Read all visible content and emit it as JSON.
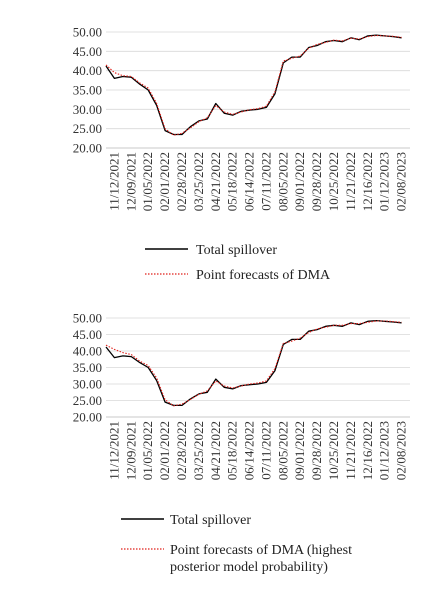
{
  "chart_data": [
    {
      "type": "line",
      "title": "",
      "xlabel": "",
      "ylabel": "",
      "ylim": [
        20,
        50
      ],
      "yticks": [
        "50.00",
        "45.00",
        "40.00",
        "35.00",
        "30.00",
        "25.00",
        "20.00"
      ],
      "ytick_values": [
        50,
        45,
        40,
        35,
        30,
        25,
        20
      ],
      "xticks": [
        "11/12/2021",
        "12/09/2021",
        "01/05/2022",
        "02/01/2022",
        "02/28/2022",
        "03/25/2022",
        "04/21/2022",
        "05/18/2022",
        "06/14/2022",
        "07/11/2022",
        "08/05/2022",
        "09/01/2022",
        "09/28/2022",
        "10/25/2022",
        "11/21/2022",
        "12/16/2022",
        "01/12/2023",
        "02/08/2023"
      ],
      "grid": true,
      "legend_position": "bottom",
      "series": [
        {
          "name": "Total  spillover",
          "color": "#000000",
          "style": "solid",
          "x": [
            0,
            0.5,
            1,
            1.5,
            2,
            2.5,
            3,
            3.5,
            4,
            4.5,
            5,
            5.5,
            6,
            6.5,
            7,
            7.5,
            8,
            8.5,
            9,
            9.5,
            10,
            10.5,
            11,
            11.5,
            12,
            12.5,
            13,
            13.5,
            14,
            14.5,
            15,
            15.5,
            16,
            16.5,
            17,
            17.5
          ],
          "values": [
            41.2,
            38,
            38.5,
            38.3,
            36.5,
            35,
            31,
            24.5,
            23.5,
            23.5,
            25.5,
            27,
            27.5,
            31.5,
            29,
            28.5,
            29.5,
            29.8,
            30,
            30.5,
            34,
            42,
            43.5,
            43.5,
            46,
            46.5,
            47.5,
            47.8,
            47.5,
            48.5,
            48,
            49,
            49.2,
            49,
            48.8,
            48.5
          ]
        },
        {
          "name": "Point forecasts of DMA",
          "color": "#e0201b",
          "style": "dotted",
          "x": [
            0,
            0.5,
            1,
            1.5,
            2,
            2.5,
            3,
            3.5,
            4,
            4.5,
            5,
            5.5,
            6,
            6.5,
            7,
            7.5,
            8,
            8.5,
            9,
            9.5,
            10,
            10.5,
            11,
            11.5,
            12,
            12.5,
            13,
            13.5,
            14,
            14.5,
            15,
            15.5,
            16,
            16.5,
            17,
            17.5
          ],
          "values": [
            41.5,
            39.5,
            38.7,
            38.5,
            36.8,
            35.5,
            31.5,
            25,
            23.3,
            23.8,
            25.2,
            26.8,
            27.8,
            31,
            29.3,
            28.7,
            29.3,
            29.9,
            30.2,
            30.8,
            34.5,
            42.5,
            43.2,
            43.8,
            45.8,
            46.8,
            47.3,
            47.9,
            47.7,
            48.4,
            48.2,
            48.8,
            49.1,
            49,
            48.9,
            48.6
          ]
        }
      ]
    },
    {
      "type": "line",
      "title": "",
      "xlabel": "",
      "ylabel": "",
      "ylim": [
        20,
        50
      ],
      "yticks": [
        "50.00",
        "45.00",
        "40.00",
        "35.00",
        "30.00",
        "25.00",
        "20.00"
      ],
      "ytick_values": [
        50,
        45,
        40,
        35,
        30,
        25,
        20
      ],
      "xticks": [
        "11/12/2021",
        "12/09/2021",
        "01/05/2022",
        "02/01/2022",
        "02/28/2022",
        "03/25/2022",
        "04/21/2022",
        "05/18/2022",
        "06/14/2022",
        "07/11/2022",
        "08/05/2022",
        "09/01/2022",
        "09/28/2022",
        "10/25/2022",
        "11/21/2022",
        "12/16/2022",
        "01/12/2023",
        "02/08/2023"
      ],
      "grid": true,
      "legend_position": "bottom",
      "series": [
        {
          "name": "Total  spillover",
          "color": "#000000",
          "style": "solid",
          "x": [
            0,
            0.5,
            1,
            1.5,
            2,
            2.5,
            3,
            3.5,
            4,
            4.5,
            5,
            5.5,
            6,
            6.5,
            7,
            7.5,
            8,
            8.5,
            9,
            9.5,
            10,
            10.5,
            11,
            11.5,
            12,
            12.5,
            13,
            13.5,
            14,
            14.5,
            15,
            15.5,
            16,
            16.5,
            17,
            17.5
          ],
          "values": [
            41.2,
            38,
            38.5,
            38.3,
            36.5,
            35,
            31,
            24.5,
            23.5,
            23.5,
            25.5,
            27,
            27.5,
            31.5,
            29,
            28.5,
            29.5,
            29.8,
            30,
            30.5,
            34,
            42,
            43.5,
            43.5,
            46,
            46.5,
            47.5,
            47.8,
            47.5,
            48.5,
            48,
            49,
            49.2,
            49,
            48.8,
            48.5
          ]
        },
        {
          "name": "Point forecasts of DMA (highest posterior model probability)",
          "color": "#e0201b",
          "style": "dotted",
          "x": [
            0,
            0.5,
            1,
            1.5,
            2,
            2.5,
            3,
            3.5,
            4,
            4.5,
            5,
            5.5,
            6,
            6.5,
            7,
            7.5,
            8,
            8.5,
            9,
            9.5,
            10,
            10.5,
            11,
            11.5,
            12,
            12.5,
            13,
            13.5,
            14,
            14.5,
            15,
            15.5,
            16,
            16.5,
            17,
            17.5
          ],
          "values": [
            41.8,
            40.5,
            39.5,
            38.9,
            36.9,
            35.6,
            31.8,
            25.2,
            23.4,
            23.9,
            25.3,
            26.9,
            27.9,
            30.9,
            29.4,
            28.8,
            29.4,
            30,
            30.3,
            30.9,
            34.7,
            42.3,
            43,
            43.9,
            45.6,
            46.7,
            47.2,
            47.8,
            47.8,
            48.3,
            48.3,
            48.7,
            49.1,
            49.1,
            48.9,
            48.7
          ]
        }
      ],
      "legend_lines": [
        "Point forecasts of DMA (highest",
        "posterior model probability)"
      ]
    }
  ]
}
